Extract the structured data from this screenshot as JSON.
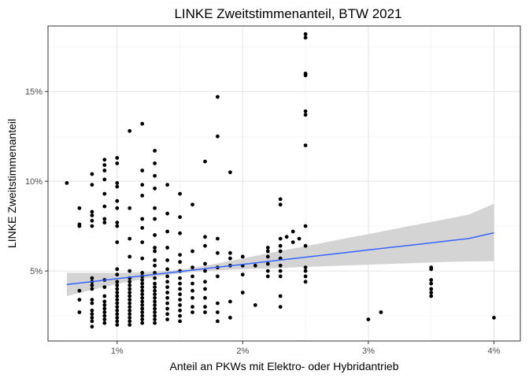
{
  "chart_data": {
    "type": "scatter",
    "title": "LINKE Zweitstimmenanteil, BTW 2021",
    "xlabel": "Anteil an PKWs mit Elektro- oder Hybridantrieb",
    "ylabel": "LINKE Zweitstimmenanteil",
    "xlim": [
      0.0045,
      0.0421
    ],
    "ylim": [
      0.011,
      0.1865
    ],
    "x_ticks": [
      {
        "value": 0.01,
        "label": "1%"
      },
      {
        "value": 0.02,
        "label": "2%"
      },
      {
        "value": 0.03,
        "label": "3%"
      },
      {
        "value": 0.04,
        "label": "4%"
      }
    ],
    "y_ticks": [
      {
        "value": 0.05,
        "label": "5%"
      },
      {
        "value": 0.1,
        "label": "10%"
      },
      {
        "value": 0.15,
        "label": "15%"
      }
    ],
    "grid": true,
    "point_color": "#000000",
    "trend_color": "#3366ff",
    "band_color": "#d4d4d4",
    "points": [
      [
        0.006,
        0.099
      ],
      [
        0.007,
        0.085
      ],
      [
        0.007,
        0.076
      ],
      [
        0.007,
        0.075
      ],
      [
        0.007,
        0.039
      ],
      [
        0.007,
        0.034
      ],
      [
        0.007,
        0.027
      ],
      [
        0.008,
        0.104
      ],
      [
        0.008,
        0.098
      ],
      [
        0.008,
        0.083
      ],
      [
        0.008,
        0.081
      ],
      [
        0.008,
        0.078
      ],
      [
        0.008,
        0.075
      ],
      [
        0.008,
        0.046
      ],
      [
        0.008,
        0.044
      ],
      [
        0.008,
        0.042
      ],
      [
        0.008,
        0.04
      ],
      [
        0.008,
        0.034
      ],
      [
        0.008,
        0.032
      ],
      [
        0.008,
        0.028
      ],
      [
        0.008,
        0.026
      ],
      [
        0.008,
        0.024
      ],
      [
        0.008,
        0.022
      ],
      [
        0.008,
        0.019
      ],
      [
        0.009,
        0.112
      ],
      [
        0.009,
        0.109
      ],
      [
        0.009,
        0.106
      ],
      [
        0.009,
        0.101
      ],
      [
        0.009,
        0.093
      ],
      [
        0.009,
        0.086
      ],
      [
        0.009,
        0.079
      ],
      [
        0.009,
        0.077
      ],
      [
        0.009,
        0.045
      ],
      [
        0.009,
        0.041
      ],
      [
        0.009,
        0.036
      ],
      [
        0.009,
        0.033
      ],
      [
        0.009,
        0.031
      ],
      [
        0.009,
        0.029
      ],
      [
        0.009,
        0.027
      ],
      [
        0.009,
        0.025
      ],
      [
        0.009,
        0.023
      ],
      [
        0.009,
        0.021
      ],
      [
        0.01,
        0.113
      ],
      [
        0.01,
        0.11
      ],
      [
        0.01,
        0.099
      ],
      [
        0.01,
        0.097
      ],
      [
        0.01,
        0.089
      ],
      [
        0.01,
        0.085
      ],
      [
        0.01,
        0.077
      ],
      [
        0.01,
        0.075
      ],
      [
        0.01,
        0.066
      ],
      [
        0.01,
        0.051
      ],
      [
        0.01,
        0.048
      ],
      [
        0.01,
        0.044
      ],
      [
        0.01,
        0.042
      ],
      [
        0.01,
        0.04
      ],
      [
        0.01,
        0.038
      ],
      [
        0.01,
        0.036
      ],
      [
        0.01,
        0.034
      ],
      [
        0.01,
        0.032
      ],
      [
        0.01,
        0.03
      ],
      [
        0.01,
        0.028
      ],
      [
        0.01,
        0.026
      ],
      [
        0.01,
        0.024
      ],
      [
        0.01,
        0.022
      ],
      [
        0.01,
        0.02
      ],
      [
        0.011,
        0.128
      ],
      [
        0.011,
        0.085
      ],
      [
        0.011,
        0.068
      ],
      [
        0.011,
        0.058
      ],
      [
        0.011,
        0.05
      ],
      [
        0.011,
        0.046
      ],
      [
        0.011,
        0.044
      ],
      [
        0.011,
        0.042
      ],
      [
        0.011,
        0.04
      ],
      [
        0.011,
        0.038
      ],
      [
        0.011,
        0.036
      ],
      [
        0.011,
        0.034
      ],
      [
        0.011,
        0.032
      ],
      [
        0.011,
        0.03
      ],
      [
        0.011,
        0.028
      ],
      [
        0.011,
        0.026
      ],
      [
        0.011,
        0.024
      ],
      [
        0.011,
        0.022
      ],
      [
        0.011,
        0.02
      ],
      [
        0.012,
        0.132
      ],
      [
        0.012,
        0.106
      ],
      [
        0.012,
        0.098
      ],
      [
        0.012,
        0.092
      ],
      [
        0.012,
        0.079
      ],
      [
        0.012,
        0.074
      ],
      [
        0.012,
        0.066
      ],
      [
        0.012,
        0.057
      ],
      [
        0.012,
        0.049
      ],
      [
        0.012,
        0.047
      ],
      [
        0.012,
        0.045
      ],
      [
        0.012,
        0.043
      ],
      [
        0.012,
        0.041
      ],
      [
        0.012,
        0.039
      ],
      [
        0.012,
        0.037
      ],
      [
        0.012,
        0.035
      ],
      [
        0.012,
        0.033
      ],
      [
        0.012,
        0.031
      ],
      [
        0.012,
        0.029
      ],
      [
        0.012,
        0.027
      ],
      [
        0.012,
        0.025
      ],
      [
        0.012,
        0.023
      ],
      [
        0.012,
        0.021
      ],
      [
        0.013,
        0.117
      ],
      [
        0.013,
        0.11
      ],
      [
        0.013,
        0.103
      ],
      [
        0.013,
        0.096
      ],
      [
        0.013,
        0.085
      ],
      [
        0.013,
        0.079
      ],
      [
        0.013,
        0.07
      ],
      [
        0.013,
        0.063
      ],
      [
        0.013,
        0.061
      ],
      [
        0.013,
        0.056
      ],
      [
        0.013,
        0.053
      ],
      [
        0.013,
        0.049
      ],
      [
        0.013,
        0.046
      ],
      [
        0.013,
        0.043
      ],
      [
        0.013,
        0.041
      ],
      [
        0.013,
        0.039
      ],
      [
        0.013,
        0.037
      ],
      [
        0.013,
        0.035
      ],
      [
        0.013,
        0.033
      ],
      [
        0.013,
        0.031
      ],
      [
        0.013,
        0.029
      ],
      [
        0.013,
        0.027
      ],
      [
        0.013,
        0.025
      ],
      [
        0.013,
        0.023
      ],
      [
        0.013,
        0.021
      ],
      [
        0.014,
        0.098
      ],
      [
        0.014,
        0.082
      ],
      [
        0.014,
        0.072
      ],
      [
        0.014,
        0.063
      ],
      [
        0.014,
        0.056
      ],
      [
        0.014,
        0.051
      ],
      [
        0.014,
        0.047
      ],
      [
        0.014,
        0.044
      ],
      [
        0.014,
        0.041
      ],
      [
        0.014,
        0.038
      ],
      [
        0.014,
        0.035
      ],
      [
        0.014,
        0.032
      ],
      [
        0.014,
        0.029
      ],
      [
        0.014,
        0.026
      ],
      [
        0.014,
        0.023
      ],
      [
        0.015,
        0.093
      ],
      [
        0.015,
        0.08
      ],
      [
        0.015,
        0.071
      ],
      [
        0.015,
        0.059
      ],
      [
        0.015,
        0.055
      ],
      [
        0.015,
        0.05
      ],
      [
        0.015,
        0.046
      ],
      [
        0.015,
        0.043
      ],
      [
        0.015,
        0.04
      ],
      [
        0.015,
        0.037
      ],
      [
        0.015,
        0.034
      ],
      [
        0.015,
        0.031
      ],
      [
        0.015,
        0.028
      ],
      [
        0.015,
        0.025
      ],
      [
        0.015,
        0.022
      ],
      [
        0.016,
        0.087
      ],
      [
        0.016,
        0.061
      ],
      [
        0.016,
        0.052
      ],
      [
        0.016,
        0.047
      ],
      [
        0.016,
        0.043
      ],
      [
        0.016,
        0.039
      ],
      [
        0.016,
        0.035
      ],
      [
        0.016,
        0.03
      ],
      [
        0.016,
        0.027
      ],
      [
        0.017,
        0.111
      ],
      [
        0.017,
        0.069
      ],
      [
        0.017,
        0.064
      ],
      [
        0.017,
        0.054
      ],
      [
        0.017,
        0.05
      ],
      [
        0.017,
        0.044
      ],
      [
        0.017,
        0.04
      ],
      [
        0.017,
        0.035
      ],
      [
        0.017,
        0.03
      ],
      [
        0.017,
        0.027
      ],
      [
        0.018,
        0.147
      ],
      [
        0.018,
        0.125
      ],
      [
        0.018,
        0.068
      ],
      [
        0.018,
        0.06
      ],
      [
        0.018,
        0.052
      ],
      [
        0.018,
        0.047
      ],
      [
        0.018,
        0.032
      ],
      [
        0.018,
        0.027
      ],
      [
        0.018,
        0.022
      ],
      [
        0.019,
        0.105
      ],
      [
        0.019,
        0.06
      ],
      [
        0.019,
        0.057
      ],
      [
        0.019,
        0.053
      ],
      [
        0.019,
        0.033
      ],
      [
        0.019,
        0.024
      ],
      [
        0.02,
        0.058
      ],
      [
        0.02,
        0.053
      ],
      [
        0.02,
        0.048
      ],
      [
        0.02,
        0.038
      ],
      [
        0.021,
        0.053
      ],
      [
        0.021,
        0.031
      ],
      [
        0.022,
        0.063
      ],
      [
        0.022,
        0.061
      ],
      [
        0.022,
        0.058
      ],
      [
        0.022,
        0.054
      ],
      [
        0.022,
        0.05
      ],
      [
        0.022,
        0.047
      ],
      [
        0.023,
        0.09
      ],
      [
        0.023,
        0.087
      ],
      [
        0.023,
        0.068
      ],
      [
        0.023,
        0.064
      ],
      [
        0.023,
        0.061
      ],
      [
        0.023,
        0.057
      ],
      [
        0.023,
        0.053
      ],
      [
        0.023,
        0.05
      ],
      [
        0.023,
        0.047
      ],
      [
        0.023,
        0.036
      ],
      [
        0.023,
        0.03
      ],
      [
        0.0235,
        0.069
      ],
      [
        0.024,
        0.072
      ],
      [
        0.024,
        0.066
      ],
      [
        0.0245,
        0.068
      ],
      [
        0.025,
        0.182
      ],
      [
        0.025,
        0.18
      ],
      [
        0.025,
        0.16
      ],
      [
        0.025,
        0.159
      ],
      [
        0.025,
        0.139
      ],
      [
        0.025,
        0.137
      ],
      [
        0.025,
        0.12
      ],
      [
        0.025,
        0.075
      ],
      [
        0.025,
        0.064
      ],
      [
        0.025,
        0.052
      ],
      [
        0.025,
        0.05
      ],
      [
        0.025,
        0.047
      ],
      [
        0.025,
        0.044
      ],
      [
        0.03,
        0.023
      ],
      [
        0.031,
        0.027
      ],
      [
        0.035,
        0.052
      ],
      [
        0.035,
        0.051
      ],
      [
        0.035,
        0.045
      ],
      [
        0.035,
        0.043
      ],
      [
        0.035,
        0.04
      ],
      [
        0.035,
        0.038
      ],
      [
        0.035,
        0.036
      ],
      [
        0.04,
        0.024
      ]
    ],
    "trend": {
      "x": [
        0.006,
        0.008,
        0.01,
        0.012,
        0.014,
        0.016,
        0.018,
        0.02,
        0.022,
        0.024,
        0.026,
        0.028,
        0.03,
        0.032,
        0.034,
        0.036,
        0.038,
        0.04
      ],
      "y": [
        0.0425,
        0.0441,
        0.0457,
        0.0473,
        0.0489,
        0.0505,
        0.0521,
        0.0537,
        0.0553,
        0.0569,
        0.0585,
        0.0601,
        0.0617,
        0.0633,
        0.0649,
        0.0665,
        0.0681,
        0.0713
      ],
      "lower": [
        0.036,
        0.0395,
        0.0428,
        0.0455,
        0.0478,
        0.0494,
        0.0504,
        0.051,
        0.0515,
        0.052,
        0.0525,
        0.053,
        0.0535,
        0.054,
        0.0545,
        0.055,
        0.0553,
        0.0555
      ],
      "upper": [
        0.049,
        0.049,
        0.049,
        0.0492,
        0.05,
        0.0516,
        0.0542,
        0.057,
        0.0598,
        0.0625,
        0.0652,
        0.0679,
        0.0706,
        0.0733,
        0.076,
        0.0787,
        0.0814,
        0.0875
      ]
    }
  }
}
